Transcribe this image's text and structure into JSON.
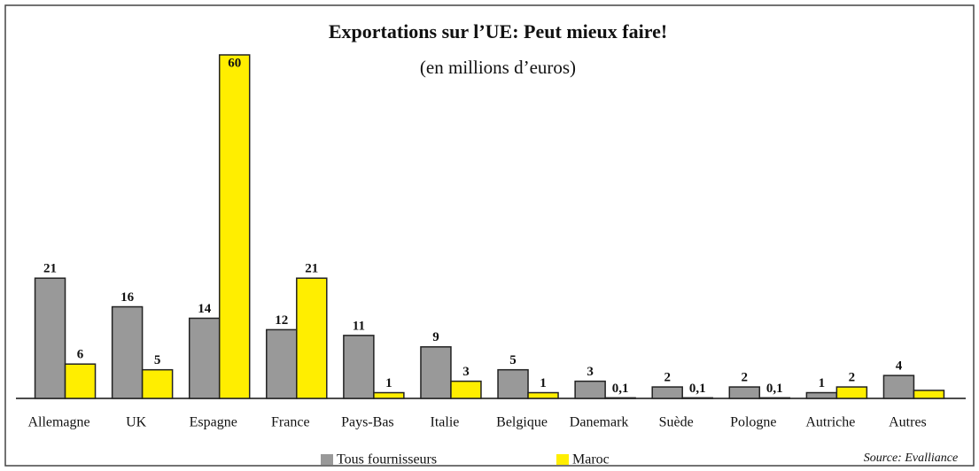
{
  "chart_data": {
    "type": "bar",
    "title": "Exportations sur l’UE: Peut mieux faire!",
    "subtitle": "(en millions d’euros)",
    "source": "Source: Evalliance",
    "categories": [
      "Allemagne",
      "UK",
      "Espagne",
      "France",
      "Pays-Bas",
      "Italie",
      "Belgique",
      "Danemark",
      "Suède",
      "Pologne",
      "Autriche",
      "Autres"
    ],
    "series": [
      {
        "name": "Tous fournisseurs",
        "color": "#999999",
        "values": [
          21,
          16,
          14,
          12,
          11,
          9,
          5,
          3,
          2,
          2,
          1,
          4
        ]
      },
      {
        "name": "Maroc",
        "color": "#ffee00",
        "values": [
          6,
          5,
          60,
          21,
          1,
          3,
          1,
          0.1,
          0.1,
          0.1,
          2,
          1.4
        ],
        "value_labels": [
          "6",
          "5",
          "60",
          "21",
          "1",
          "3",
          "1",
          "0,1",
          "0,1",
          "0,1",
          "2",
          null
        ]
      }
    ],
    "ylim": [
      0,
      60
    ]
  }
}
